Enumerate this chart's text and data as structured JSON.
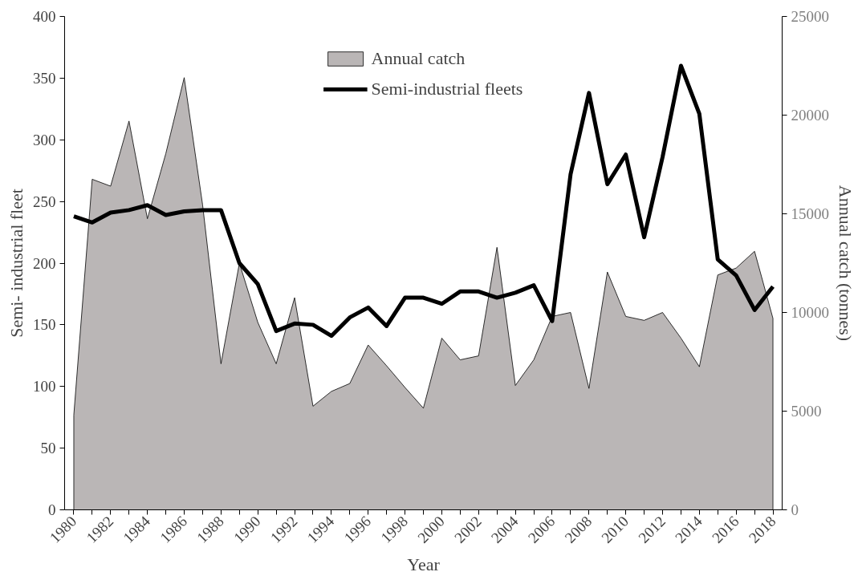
{
  "chart_data": {
    "type": "line",
    "xlabel": "Year",
    "ylabel": "Semi- industrial fleet",
    "y2label": "Annual catch (tonnes)",
    "categories": [
      "1980",
      null,
      "1982",
      null,
      "1984",
      null,
      "1986",
      null,
      "1988",
      null,
      "1990",
      null,
      "1992",
      null,
      "1994",
      null,
      "1996",
      null,
      "1998",
      null,
      "2000",
      null,
      "2002",
      null,
      "2004",
      null,
      "2006",
      null,
      "2008",
      null,
      "2010",
      null,
      "2012",
      null,
      "2014",
      null,
      "2016",
      null,
      "2018"
    ],
    "series": [
      {
        "name": "Annual catch",
        "type": "area",
        "axis": "y2",
        "color": "#bab6b6",
        "values": [
          4800,
          16750,
          16400,
          19700,
          14750,
          18050,
          21900,
          15450,
          7400,
          12500,
          9500,
          7400,
          10750,
          5250,
          6000,
          6400,
          8350,
          7300,
          6200,
          5150,
          8700,
          7600,
          7800,
          13300,
          6300,
          7600,
          9800,
          10000,
          6150,
          12050,
          9800,
          9600,
          10000,
          8700,
          7250,
          11900,
          12250,
          13100,
          9700
        ]
      },
      {
        "name": "Semi-industrial fleets",
        "color": "#000000",
        "values": [
          238,
          233,
          241,
          243,
          247,
          239,
          242,
          243,
          243,
          200,
          183,
          145,
          151,
          150,
          141,
          156,
          164,
          149,
          172,
          172,
          167,
          177,
          177,
          172,
          176,
          182,
          153,
          272,
          338,
          264,
          288,
          221,
          286,
          360,
          321,
          203,
          190,
          162,
          181
        ]
      }
    ],
    "ylim": [
      0,
      400
    ],
    "yticks": [
      0,
      50,
      100,
      150,
      200,
      250,
      300,
      350,
      400
    ],
    "y2lim": [
      0,
      25000
    ],
    "y2ticks": [
      0,
      5000,
      10000,
      15000,
      20000,
      25000
    ],
    "grid": false,
    "legend": "top",
    "marker": "none",
    "line_style": "solid"
  }
}
